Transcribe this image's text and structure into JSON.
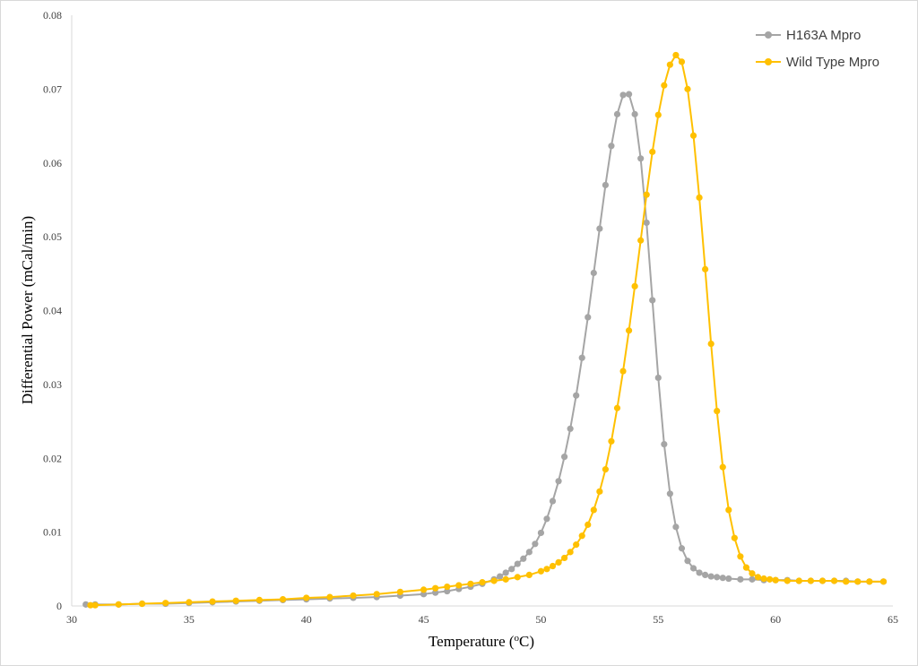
{
  "chart_data": {
    "type": "line",
    "xlabel": "Temperature (",
    "xlabel_super": "o",
    "xlabel_suffix": "C)",
    "ylabel": "Differential Power (mCal/min)",
    "xlim": [
      30,
      65
    ],
    "ylim": [
      0,
      0.08
    ],
    "x_ticks": [
      30,
      35,
      40,
      45,
      50,
      55,
      60,
      65
    ],
    "y_ticks": [
      0,
      0.01,
      0.02,
      0.03,
      0.04,
      0.05,
      0.06,
      0.07,
      0.08
    ],
    "y_tick_labels": [
      "0",
      "0.01",
      "0.02",
      "0.03",
      "0.04",
      "0.05",
      "0.06",
      "0.07",
      "0.08"
    ],
    "grid": false,
    "legend_position": "top-right",
    "series": [
      {
        "name": "H163A Mpro",
        "color": "#a5a5a5",
        "points": [
          [
            30.6,
            0.0002
          ],
          [
            31.0,
            0.0002
          ],
          [
            32.0,
            0.0002
          ],
          [
            33.0,
            0.0003
          ],
          [
            34.0,
            0.0003
          ],
          [
            35.0,
            0.0004
          ],
          [
            36.0,
            0.0005
          ],
          [
            37.0,
            0.0006
          ],
          [
            38.0,
            0.0007
          ],
          [
            39.0,
            0.0008
          ],
          [
            40.0,
            0.0009
          ],
          [
            41.0,
            0.001
          ],
          [
            42.0,
            0.0011
          ],
          [
            43.0,
            0.0012
          ],
          [
            44.0,
            0.0014
          ],
          [
            45.0,
            0.0016
          ],
          [
            45.5,
            0.0018
          ],
          [
            46.0,
            0.002
          ],
          [
            46.5,
            0.0023
          ],
          [
            47.0,
            0.0026
          ],
          [
            47.5,
            0.003
          ],
          [
            48.0,
            0.0036
          ],
          [
            48.25,
            0.004
          ],
          [
            48.5,
            0.0045
          ],
          [
            48.75,
            0.005
          ],
          [
            49.0,
            0.0057
          ],
          [
            49.25,
            0.0064
          ],
          [
            49.5,
            0.0073
          ],
          [
            49.75,
            0.0084
          ],
          [
            50.0,
            0.0099
          ],
          [
            50.25,
            0.0118
          ],
          [
            50.5,
            0.0142
          ],
          [
            50.75,
            0.0169
          ],
          [
            51.0,
            0.0202
          ],
          [
            51.25,
            0.024
          ],
          [
            51.5,
            0.0285
          ],
          [
            51.75,
            0.0336
          ],
          [
            52.0,
            0.0391
          ],
          [
            52.25,
            0.0451
          ],
          [
            52.5,
            0.0511
          ],
          [
            52.75,
            0.057
          ],
          [
            53.0,
            0.0623
          ],
          [
            53.25,
            0.0666
          ],
          [
            53.5,
            0.0692
          ],
          [
            53.75,
            0.0693
          ],
          [
            54.0,
            0.0666
          ],
          [
            54.25,
            0.0606
          ],
          [
            54.5,
            0.0519
          ],
          [
            54.75,
            0.0414
          ],
          [
            55.0,
            0.0309
          ],
          [
            55.25,
            0.0219
          ],
          [
            55.5,
            0.0152
          ],
          [
            55.75,
            0.0107
          ],
          [
            56.0,
            0.0078
          ],
          [
            56.25,
            0.0061
          ],
          [
            56.5,
            0.0051
          ],
          [
            56.75,
            0.0045
          ],
          [
            57.0,
            0.0042
          ],
          [
            57.25,
            0.004
          ],
          [
            57.5,
            0.0039
          ],
          [
            57.75,
            0.0038
          ],
          [
            58.0,
            0.0037
          ],
          [
            58.5,
            0.0036
          ],
          [
            59.0,
            0.0036
          ],
          [
            59.5,
            0.0035
          ],
          [
            60.0,
            0.0035
          ],
          [
            60.5,
            0.0035
          ],
          [
            61.0,
            0.0034
          ],
          [
            61.5,
            0.0034
          ],
          [
            62.0,
            0.0034
          ],
          [
            62.5,
            0.0034
          ],
          [
            63.0,
            0.0034
          ],
          [
            63.5,
            0.0033
          ],
          [
            64.0,
            0.0033
          ],
          [
            64.6,
            0.0033
          ]
        ]
      },
      {
        "name": "Wild Type Mpro",
        "color": "#ffc000",
        "points": [
          [
            30.8,
            0.0001
          ],
          [
            31.0,
            0.0001
          ],
          [
            32.0,
            0.0002
          ],
          [
            33.0,
            0.0003
          ],
          [
            34.0,
            0.0004
          ],
          [
            35.0,
            0.0005
          ],
          [
            36.0,
            0.0006
          ],
          [
            37.0,
            0.0007
          ],
          [
            38.0,
            0.0008
          ],
          [
            39.0,
            0.0009
          ],
          [
            40.0,
            0.0011
          ],
          [
            41.0,
            0.0012
          ],
          [
            42.0,
            0.0014
          ],
          [
            43.0,
            0.0016
          ],
          [
            44.0,
            0.0019
          ],
          [
            45.0,
            0.0022
          ],
          [
            45.5,
            0.0024
          ],
          [
            46.0,
            0.0026
          ],
          [
            46.5,
            0.0028
          ],
          [
            47.0,
            0.003
          ],
          [
            47.5,
            0.0032
          ],
          [
            48.0,
            0.0034
          ],
          [
            48.5,
            0.0036
          ],
          [
            49.0,
            0.0039
          ],
          [
            49.5,
            0.0042
          ],
          [
            50.0,
            0.0047
          ],
          [
            50.25,
            0.005
          ],
          [
            50.5,
            0.0054
          ],
          [
            50.75,
            0.0059
          ],
          [
            51.0,
            0.0065
          ],
          [
            51.25,
            0.0073
          ],
          [
            51.5,
            0.0083
          ],
          [
            51.75,
            0.0095
          ],
          [
            52.0,
            0.011
          ],
          [
            52.25,
            0.013
          ],
          [
            52.5,
            0.0155
          ],
          [
            52.75,
            0.0185
          ],
          [
            53.0,
            0.0223
          ],
          [
            53.25,
            0.0268
          ],
          [
            53.5,
            0.0318
          ],
          [
            53.75,
            0.0373
          ],
          [
            54.0,
            0.0433
          ],
          [
            54.25,
            0.0495
          ],
          [
            54.5,
            0.0557
          ],
          [
            54.75,
            0.0615
          ],
          [
            55.0,
            0.0665
          ],
          [
            55.25,
            0.0705
          ],
          [
            55.5,
            0.0733
          ],
          [
            55.75,
            0.0746
          ],
          [
            56.0,
            0.0737
          ],
          [
            56.25,
            0.07
          ],
          [
            56.5,
            0.0637
          ],
          [
            56.75,
            0.0553
          ],
          [
            57.0,
            0.0456
          ],
          [
            57.25,
            0.0355
          ],
          [
            57.5,
            0.0264
          ],
          [
            57.75,
            0.0188
          ],
          [
            58.0,
            0.013
          ],
          [
            58.25,
            0.0092
          ],
          [
            58.5,
            0.0067
          ],
          [
            58.75,
            0.0052
          ],
          [
            59.0,
            0.0044
          ],
          [
            59.25,
            0.0039
          ],
          [
            59.5,
            0.0037
          ],
          [
            59.75,
            0.0036
          ],
          [
            60.0,
            0.0035
          ],
          [
            60.5,
            0.0034
          ],
          [
            61.0,
            0.0034
          ],
          [
            61.5,
            0.0034
          ],
          [
            62.0,
            0.0034
          ],
          [
            62.5,
            0.0034
          ],
          [
            63.0,
            0.0033
          ],
          [
            63.5,
            0.0033
          ],
          [
            64.0,
            0.0033
          ],
          [
            64.6,
            0.0033
          ]
        ]
      }
    ]
  }
}
